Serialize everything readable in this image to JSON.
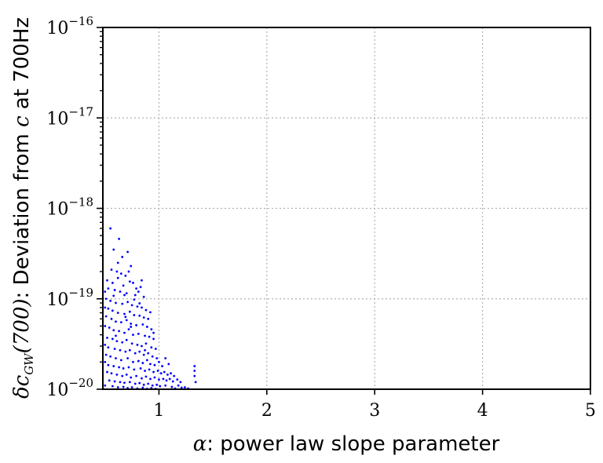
{
  "chart_data": {
    "type": "scatter",
    "xlabel": {
      "math": "α",
      "text": ": power law slope parameter"
    },
    "ylabel": {
      "math": "δc",
      "sub": "GW",
      "arg": "(700)",
      "text": ": Deviation from ",
      "math2": "c",
      "text2": " at 700Hz"
    },
    "xlim": [
      0.48,
      5
    ],
    "ylim": [
      1e-20,
      1e-16
    ],
    "yscale": "log",
    "grid": true,
    "marker_color": "#0000ff",
    "x_ticks": [
      {
        "value": 1,
        "label": "1"
      },
      {
        "value": 2,
        "label": "2"
      },
      {
        "value": 3,
        "label": "3"
      },
      {
        "value": 4,
        "label": "4"
      },
      {
        "value": 5,
        "label": "5"
      }
    ],
    "y_ticks": [
      {
        "value": 1e-20,
        "base": "10",
        "exp": "−20"
      },
      {
        "value": 1e-19,
        "base": "10",
        "exp": "−19"
      },
      {
        "value": 1e-18,
        "base": "10",
        "exp": "−18"
      },
      {
        "value": 1e-17,
        "base": "10",
        "exp": "−17"
      },
      {
        "value": 1e-16,
        "base": "10",
        "exp": "−16"
      }
    ],
    "points": [
      [
        0.55,
        6e-19
      ],
      [
        0.63,
        4.6e-19
      ],
      [
        0.58,
        3.5e-19
      ],
      [
        0.66,
        2.9e-19
      ],
      [
        0.71,
        3.3e-19
      ],
      [
        0.74,
        2.3e-19
      ],
      [
        0.56,
        2.1e-19
      ],
      [
        0.61,
        2e-19
      ],
      [
        0.65,
        1.9e-19
      ],
      [
        0.69,
        1.8e-19
      ],
      [
        0.72,
        2e-19
      ],
      [
        0.52,
        1.6e-19
      ],
      [
        0.57,
        1.5e-19
      ],
      [
        0.62,
        1.7e-19
      ],
      [
        0.67,
        1.4e-19
      ],
      [
        0.73,
        1.55e-19
      ],
      [
        0.76,
        1.5e-19
      ],
      [
        0.79,
        1.3e-19
      ],
      [
        0.83,
        1.35e-19
      ],
      [
        0.53,
        1.3e-19
      ],
      [
        0.59,
        1.25e-19
      ],
      [
        0.64,
        1.2e-19
      ],
      [
        0.7,
        1.15e-19
      ],
      [
        0.78,
        1.1e-19
      ],
      [
        0.81,
        1.2e-19
      ],
      [
        0.86,
        1.05e-19
      ],
      [
        0.51,
        1e-19
      ],
      [
        0.55,
        9.5e-20
      ],
      [
        0.6,
        9e-20
      ],
      [
        0.66,
        8.8e-20
      ],
      [
        0.71,
        9.2e-20
      ],
      [
        0.75,
        8.5e-20
      ],
      [
        0.8,
        8.2e-20
      ],
      [
        0.84,
        8e-20
      ],
      [
        0.88,
        7.5e-20
      ],
      [
        0.53,
        7.8e-20
      ],
      [
        0.57,
        7.4e-20
      ],
      [
        0.62,
        7e-20
      ],
      [
        0.68,
        6.8e-20
      ],
      [
        0.73,
        7.2e-20
      ],
      [
        0.77,
        6.6e-20
      ],
      [
        0.82,
        6.5e-20
      ],
      [
        0.86,
        6.2e-20
      ],
      [
        0.9,
        6e-20
      ],
      [
        0.51,
        6.4e-20
      ],
      [
        0.56,
        6e-20
      ],
      [
        0.6,
        5.6e-20
      ],
      [
        0.65,
        5.5e-20
      ],
      [
        0.7,
        5.8e-20
      ],
      [
        0.74,
        5.3e-20
      ],
      [
        0.79,
        5.1e-20
      ],
      [
        0.85,
        5.2e-20
      ],
      [
        0.89,
        4.9e-20
      ],
      [
        0.93,
        4.6e-20
      ],
      [
        0.54,
        4.8e-20
      ],
      [
        0.58,
        4.5e-20
      ],
      [
        0.63,
        4.4e-20
      ],
      [
        0.68,
        4.2e-20
      ],
      [
        0.72,
        4.6e-20
      ],
      [
        0.76,
        4e-20
      ],
      [
        0.81,
        4.1e-20
      ],
      [
        0.87,
        3.9e-20
      ],
      [
        0.91,
        3.8e-20
      ],
      [
        0.95,
        3.6e-20
      ],
      [
        0.52,
        3.7e-20
      ],
      [
        0.57,
        3.6e-20
      ],
      [
        0.61,
        3.4e-20
      ],
      [
        0.66,
        3.3e-20
      ],
      [
        0.7,
        3.5e-20
      ],
      [
        0.75,
        3.2e-20
      ],
      [
        0.8,
        3.1e-20
      ],
      [
        0.84,
        3e-20
      ],
      [
        0.88,
        3.2e-20
      ],
      [
        0.93,
        2.9e-20
      ],
      [
        0.97,
        2.8e-20
      ],
      [
        0.53,
        2.9e-20
      ],
      [
        0.59,
        2.8e-20
      ],
      [
        0.64,
        2.7e-20
      ],
      [
        0.69,
        2.6e-20
      ],
      [
        0.73,
        2.7e-20
      ],
      [
        0.78,
        2.5e-20
      ],
      [
        0.82,
        2.6e-20
      ],
      [
        0.86,
        2.4e-20
      ],
      [
        0.9,
        2.5e-20
      ],
      [
        0.94,
        2.3e-20
      ],
      [
        0.98,
        2.2e-20
      ],
      [
        0.51,
        2.4e-20
      ],
      [
        0.55,
        2.3e-20
      ],
      [
        0.6,
        2.2e-20
      ],
      [
        0.65,
        2.1e-20
      ],
      [
        0.71,
        2.2e-20
      ],
      [
        0.76,
        2e-20
      ],
      [
        0.81,
        2.05e-20
      ],
      [
        0.85,
        1.95e-20
      ],
      [
        0.89,
        2.1e-20
      ],
      [
        0.92,
        1.9e-20
      ],
      [
        0.96,
        1.85e-20
      ],
      [
        1.0,
        2e-20
      ],
      [
        1.03,
        1.8e-20
      ],
      [
        1.06,
        2.2e-20
      ],
      [
        1.09,
        1.9e-20
      ],
      [
        0.53,
        1.85e-20
      ],
      [
        0.58,
        1.8e-20
      ],
      [
        0.63,
        1.75e-20
      ],
      [
        0.67,
        1.7e-20
      ],
      [
        0.72,
        1.75e-20
      ],
      [
        0.77,
        1.65e-20
      ],
      [
        0.83,
        1.7e-20
      ],
      [
        0.87,
        1.6e-20
      ],
      [
        0.91,
        1.65e-20
      ],
      [
        0.95,
        1.55e-20
      ],
      [
        0.99,
        1.6e-20
      ],
      [
        1.02,
        1.5e-20
      ],
      [
        1.05,
        1.55e-20
      ],
      [
        1.08,
        1.45e-20
      ],
      [
        1.11,
        1.5e-20
      ],
      [
        1.14,
        1.4e-20
      ],
      [
        0.52,
        1.55e-20
      ],
      [
        0.56,
        1.5e-20
      ],
      [
        0.61,
        1.45e-20
      ],
      [
        0.66,
        1.4e-20
      ],
      [
        0.7,
        1.45e-20
      ],
      [
        0.74,
        1.35e-20
      ],
      [
        0.79,
        1.4e-20
      ],
      [
        0.84,
        1.32e-20
      ],
      [
        0.88,
        1.38e-20
      ],
      [
        0.92,
        1.3e-20
      ],
      [
        0.96,
        1.35e-20
      ],
      [
        1.0,
        1.28e-20
      ],
      [
        1.04,
        1.3e-20
      ],
      [
        1.07,
        1.25e-20
      ],
      [
        1.1,
        1.3e-20
      ],
      [
        1.13,
        1.22e-20
      ],
      [
        1.17,
        1.28e-20
      ],
      [
        1.2,
        1.2e-20
      ],
      [
        0.54,
        1.25e-20
      ],
      [
        0.59,
        1.22e-20
      ],
      [
        0.64,
        1.2e-20
      ],
      [
        0.68,
        1.18e-20
      ],
      [
        0.73,
        1.2e-20
      ],
      [
        0.78,
        1.15e-20
      ],
      [
        0.82,
        1.17e-20
      ],
      [
        0.86,
        1.12e-20
      ],
      [
        0.9,
        1.15e-20
      ],
      [
        0.94,
        1.1e-20
      ],
      [
        0.98,
        1.12e-20
      ],
      [
        1.01,
        1.08e-20
      ],
      [
        1.06,
        1.1e-20
      ],
      [
        1.12,
        1.06e-20
      ],
      [
        1.18,
        1.1e-20
      ],
      [
        1.24,
        1.05e-20
      ],
      [
        0.57,
        1.08e-20
      ],
      [
        0.62,
        1.05e-20
      ],
      [
        0.67,
        1.06e-20
      ],
      [
        0.71,
        1.03e-20
      ],
      [
        0.75,
        1.05e-20
      ],
      [
        0.8,
        1.02e-20
      ],
      [
        0.85,
        1.04e-20
      ],
      [
        0.89,
        1.01e-20
      ],
      [
        0.93,
        1.03e-20
      ],
      [
        0.97,
        1.01e-20
      ],
      [
        1.15,
        1.02e-20
      ],
      [
        1.21,
        1.04e-20
      ],
      [
        1.27,
        1.02e-20
      ],
      [
        1.33,
        1.8e-20
      ],
      [
        1.33,
        1.6e-20
      ],
      [
        1.33,
        1.4e-20
      ],
      [
        1.34,
        1.2e-20
      ],
      [
        0.6,
        3.9e-20
      ],
      [
        0.69,
        6.3e-20
      ],
      [
        0.77,
        9.8e-20
      ],
      [
        0.84,
        1.6e-19
      ],
      [
        0.62,
        2.5e-19
      ],
      [
        0.68,
        1.1e-19
      ],
      [
        0.74,
        4.9e-20
      ],
      [
        0.87,
        2.7e-20
      ],
      [
        0.95,
        4.2e-20
      ],
      [
        0.92,
        7.1e-20
      ],
      [
        0.82,
        8.9e-20
      ],
      [
        0.58,
        1.08e-19
      ],
      [
        0.5,
        2e-20
      ],
      [
        0.5,
        3.1e-20
      ],
      [
        0.5,
        5e-20
      ],
      [
        0.5,
        8e-20
      ],
      [
        0.5,
        1.2e-19
      ],
      [
        0.5,
        1.1e-20
      ]
    ]
  }
}
